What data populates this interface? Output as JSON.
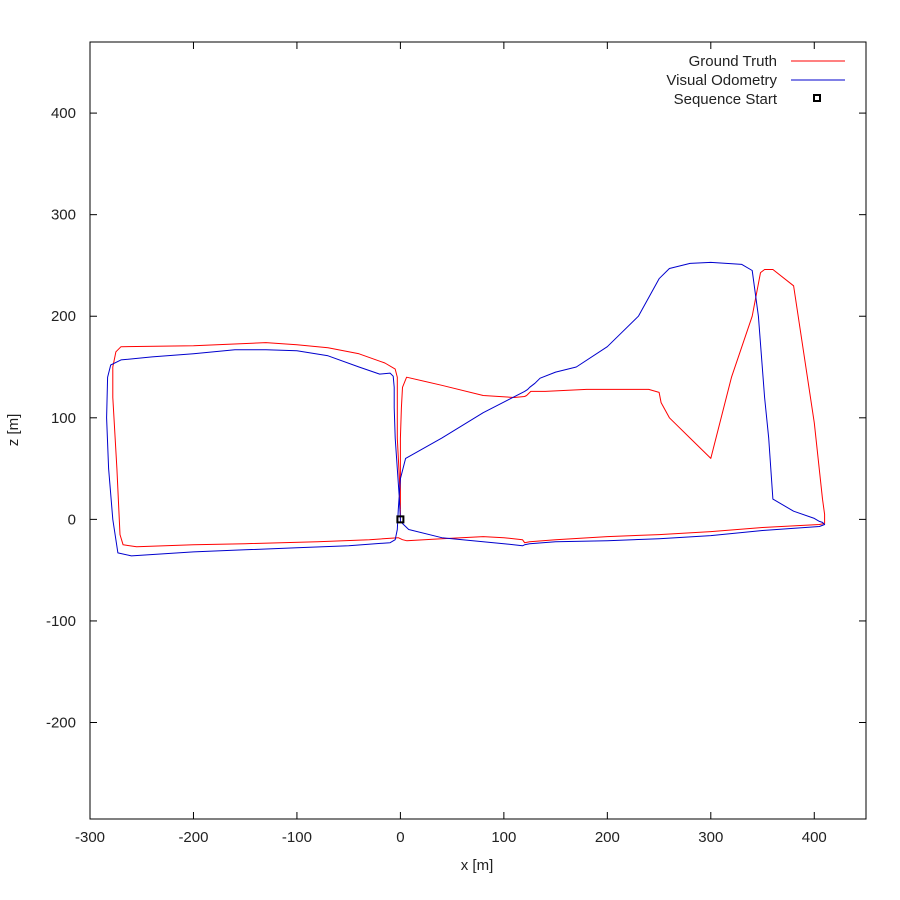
{
  "chart_data": {
    "type": "line",
    "title": "",
    "xlabel": "x [m]",
    "ylabel": "z [m]",
    "xlim": [
      -300,
      450
    ],
    "ylim": [
      -295,
      470
    ],
    "xticks": [
      -300,
      -200,
      -100,
      0,
      100,
      200,
      300,
      400
    ],
    "yticks": [
      -200,
      -100,
      0,
      100,
      200,
      300,
      400
    ],
    "grid": false,
    "legend_position": "top-right",
    "series": [
      {
        "name": "Ground Truth",
        "color": "#ff0000",
        "x": [
          0,
          0,
          0,
          1,
          2,
          6,
          40,
          80,
          110,
          120,
          122,
          126,
          130,
          134,
          140,
          160,
          180,
          200,
          220,
          240,
          250,
          252,
          260,
          280,
          300,
          320,
          340,
          348,
          352,
          360,
          380,
          400,
          408,
          410,
          410,
          405,
          350,
          300,
          250,
          200,
          150,
          125,
          120,
          118,
          100,
          80,
          40,
          6,
          2,
          -2,
          -30,
          -80,
          -150,
          -200,
          -255,
          -268,
          -271,
          -274,
          -278,
          -278,
          -275,
          -270,
          -200,
          -130,
          -100,
          -70,
          -40,
          -15,
          -5,
          -3,
          -3,
          -3,
          -1,
          0
        ],
        "y": [
          0,
          40,
          80,
          110,
          130,
          140,
          132,
          122,
          120,
          121,
          122,
          126,
          126,
          126,
          126,
          127,
          128,
          128,
          128,
          128,
          125,
          115,
          100,
          80,
          60,
          140,
          200,
          243,
          246,
          246,
          230,
          95,
          20,
          5,
          -4,
          -5,
          -8,
          -12,
          -15,
          -17,
          -20,
          -22,
          -23,
          -20,
          -18,
          -17,
          -19,
          -21,
          -20,
          -18,
          -20,
          -22,
          -24,
          -25,
          -27,
          -25,
          -15,
          50,
          120,
          150,
          165,
          170,
          171,
          174,
          172,
          169,
          163,
          154,
          148,
          140,
          110,
          80,
          40,
          10
        ]
      },
      {
        "name": "Visual Odometry",
        "color": "#0000cd",
        "x": [
          0,
          -1,
          -3,
          -5,
          -6,
          -6,
          -7,
          -10,
          -20,
          -40,
          -70,
          -100,
          -130,
          -160,
          -200,
          -240,
          -270,
          -280,
          -283,
          -284,
          -282,
          -278,
          -273,
          -260,
          -200,
          -150,
          -100,
          -50,
          -10,
          -5,
          -3,
          -2,
          0,
          5,
          40,
          80,
          120,
          123,
          125,
          130,
          135,
          150,
          170,
          200,
          230,
          250,
          260,
          280,
          300,
          330,
          340,
          346,
          352,
          356,
          360,
          380,
          400,
          405,
          408,
          410,
          405,
          350,
          300,
          250,
          200,
          150,
          125,
          120,
          118,
          100,
          80,
          40,
          8,
          3,
          0,
          0
        ],
        "y": [
          0,
          20,
          50,
          80,
          110,
          130,
          141,
          144,
          143,
          150,
          161,
          166,
          167,
          167,
          163,
          160,
          157,
          152,
          140,
          100,
          50,
          0,
          -33,
          -36,
          -32,
          -30,
          -28,
          -26,
          -23,
          -20,
          -10,
          10,
          40,
          60,
          80,
          105,
          126,
          128,
          130,
          134,
          139,
          145,
          150,
          170,
          200,
          237,
          247,
          252,
          253,
          251,
          245,
          200,
          120,
          80,
          20,
          8,
          1,
          -2,
          -3,
          -5,
          -7,
          -11,
          -16,
          -19,
          -21,
          -22,
          -24,
          -25,
          -26,
          -24,
          -22,
          -18,
          -10,
          -5,
          -2,
          0
        ]
      }
    ],
    "start_marker": {
      "name": "Sequence Start",
      "x": 0,
      "y": 0
    }
  }
}
